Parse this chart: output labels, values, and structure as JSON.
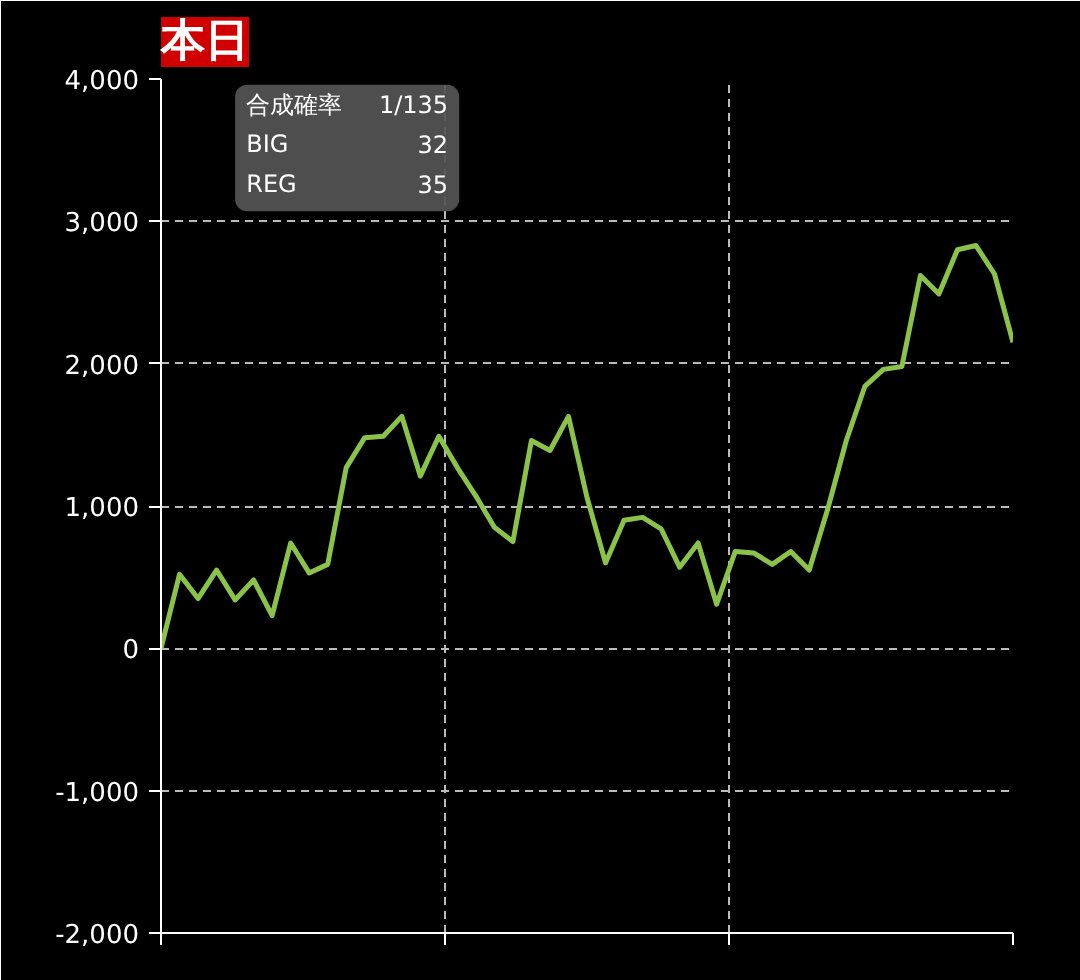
{
  "chart_data": {
    "type": "line",
    "title": "本日",
    "categories": [
      null,
      null,
      null,
      null,
      null,
      null,
      null,
      null,
      null,
      null,
      null,
      null,
      null,
      null,
      null,
      null,
      null,
      null,
      null,
      null,
      null,
      null,
      null,
      null,
      null,
      null,
      null,
      null,
      null,
      null,
      null,
      null,
      null,
      null,
      null,
      null,
      null,
      null,
      null,
      null,
      null,
      null,
      null,
      null,
      null,
      null,
      null
    ],
    "series": [
      {
        "color": "#8bc34a",
        "values": [
          0,
          520,
          350,
          550,
          340,
          480,
          230,
          740,
          530,
          590,
          1270,
          1480,
          1490,
          1630,
          1210,
          1490,
          1270,
          1070,
          850,
          750,
          1460,
          1390,
          1630,
          1060,
          600,
          900,
          920,
          840,
          570,
          740,
          310,
          680,
          670,
          590,
          680,
          550,
          980,
          1460,
          1840,
          1960,
          1980,
          2620,
          2490,
          2800,
          2830,
          2630,
          2150
        ]
      }
    ],
    "ylim": [
      -2000,
      4000
    ],
    "yticks": [
      {
        "value": -2000,
        "label": "-2,000"
      },
      {
        "value": -1000,
        "label": "-1,000"
      },
      {
        "value": 0,
        "label": "0"
      },
      {
        "value": 1000,
        "label": "1,000"
      },
      {
        "value": 2000,
        "label": "2,000"
      },
      {
        "value": 3000,
        "label": "3,000"
      },
      {
        "value": 4000,
        "label": "4,000"
      }
    ],
    "tick_labels": "y",
    "grid": true,
    "marker": "none",
    "line_style": "solid",
    "annotations": [
      "合成確率 1/135",
      "BIG 32",
      "REG 35"
    ]
  }
}
